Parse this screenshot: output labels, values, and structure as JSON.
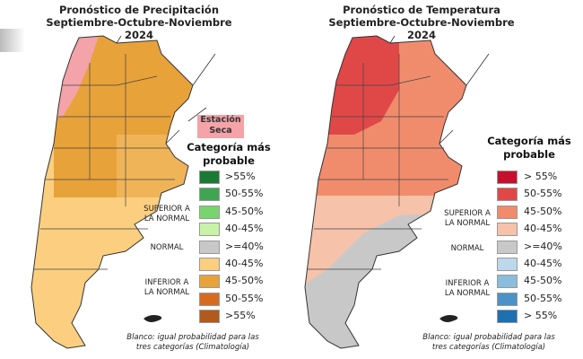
{
  "precipitation": {
    "title": "Pronóstico de Precipitación",
    "period": "Septiembre-Octubre-Noviembre 2024",
    "dry_season_label": "Estación Seca",
    "legend_title": "Categoría más probable",
    "groups": {
      "upper": "SUPERIOR A LA NORMAL",
      "normal": "NORMAL",
      "lower": "INFERIOR A LA NORMAL"
    },
    "legend": [
      {
        "label": ">55%",
        "color": "#1a7a35"
      },
      {
        "label": "50-55%",
        "color": "#3fa552"
      },
      {
        "label": "45-50%",
        "color": "#7ad46e"
      },
      {
        "label": "40-45%",
        "color": "#c8f2a8"
      },
      {
        "label": ">=40%",
        "color": "#c8c8c8"
      },
      {
        "label": "40-45%",
        "color": "#fbcf7f"
      },
      {
        "label": "45-50%",
        "color": "#e8a23a"
      },
      {
        "label": "50-55%",
        "color": "#d86a1e"
      },
      {
        "label": ">55%",
        "color": "#b05a1c"
      }
    ],
    "footnote": "Blanco: igual probabilidad para las tres categorías (Climatología)"
  },
  "temperature": {
    "title": "Pronóstico de Temperatura",
    "period": "Septiembre-Octubre-Noviembre 2024",
    "legend_title": "Categoría más probable",
    "groups": {
      "upper": "SUPERIOR A LA NORMAL",
      "normal": "NORMAL",
      "lower": "INFERIOR A LA NORMAL"
    },
    "legend": [
      {
        "label": "> 55%",
        "color": "#c8102e"
      },
      {
        "label": "50-55%",
        "color": "#e04848"
      },
      {
        "label": "45-50%",
        "color": "#f08c6c"
      },
      {
        "label": "40-45%",
        "color": "#f6c2aa"
      },
      {
        "label": ">=40%",
        "color": "#c8c8c8"
      },
      {
        "label": "40-45%",
        "color": "#bcd8ea"
      },
      {
        "label": "45-50%",
        "color": "#8abcdc"
      },
      {
        "label": "50-55%",
        "color": "#4a92c8"
      },
      {
        "label": "> 55%",
        "color": "#1f70b0"
      }
    ],
    "footnote": "Blanco: igual probabilidad para las tres categorías (Climatología)"
  }
}
